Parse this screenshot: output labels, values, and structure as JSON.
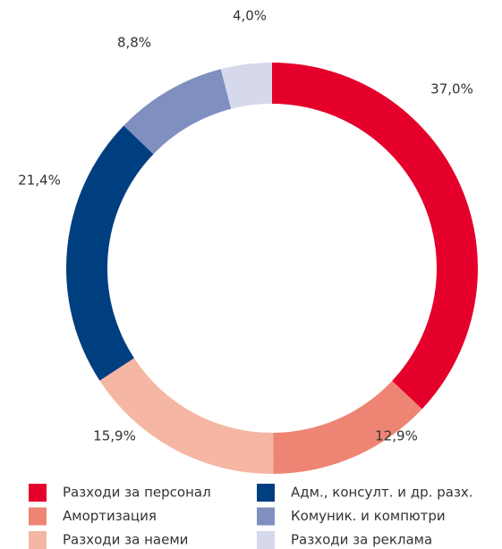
{
  "chart_data": {
    "type": "donut",
    "categories": [
      "Разходи за персонал",
      "Амортизация",
      "Разходи за наеми",
      "Адм., консулт. и др. разх.",
      "Комуник. и компютри",
      "Разходи за реклама"
    ],
    "values": [
      37.0,
      12.9,
      15.9,
      21.4,
      8.8,
      4.0
    ],
    "value_labels": [
      "37,0%",
      "12,9%",
      "15,9%",
      "21,4%",
      "8,8%",
      "4,0%"
    ],
    "colors": [
      "#e4002b",
      "#ee8574",
      "#f5b6a3",
      "#003f7f",
      "#7f8fbf",
      "#d5d9eb"
    ]
  }
}
